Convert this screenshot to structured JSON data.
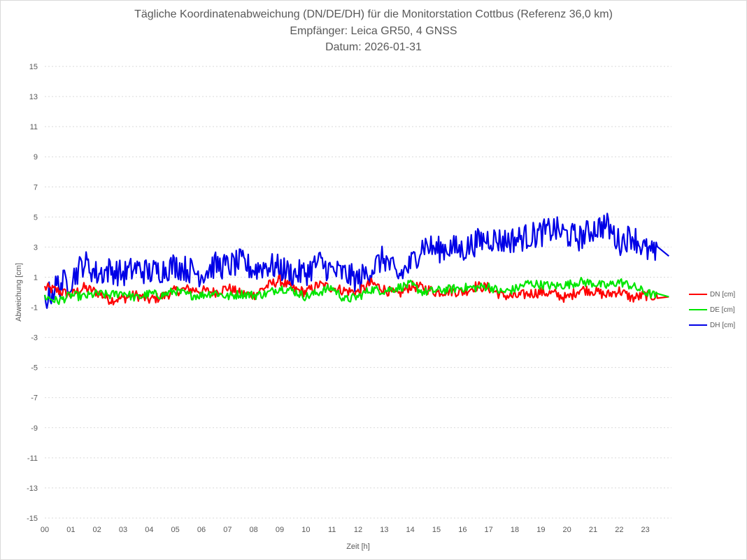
{
  "title": {
    "line1": "Tägliche Koordinatenabweichung (DN/DE/DH) für die Monitorstation Cottbus (Referenz 36,0 km)",
    "line2": "Empfänger: Leica GR50, 4 GNSS",
    "line3": "Datum: 2026-01-31"
  },
  "colors": {
    "DN": "#ff0000",
    "DE": "#00e600",
    "DH": "#0000e6",
    "grid": "#d9d9d9",
    "text": "#595959"
  },
  "chart_data": {
    "type": "line",
    "title": "Tägliche Koordinatenabweichung (DN/DE/DH) für die Monitorstation Cottbus (Referenz 36,0 km)",
    "xlabel": "Zeit [h]",
    "ylabel": "Abweichung [cm]",
    "x_range": [
      0,
      24
    ],
    "ylim": [
      -15,
      15
    ],
    "y_ticks": [
      "15",
      "13",
      "11",
      "9",
      "7",
      "5",
      "3",
      "1",
      "-1",
      "-3",
      "-5",
      "-7",
      "-9",
      "-11",
      "-13",
      "-15"
    ],
    "x_ticks": [
      "00",
      "01",
      "02",
      "03",
      "04",
      "05",
      "06",
      "07",
      "08",
      "09",
      "10",
      "11",
      "12",
      "13",
      "14",
      "15",
      "16",
      "17",
      "18",
      "19",
      "20",
      "21",
      "22",
      "23"
    ],
    "grid": "horizontal dotted",
    "legend_position": "right",
    "sample_interval_h": 0.5,
    "series": [
      {
        "name": "DN [cm]",
        "color": "#ff0000",
        "values": [
          0.3,
          0.1,
          -0.2,
          0.3,
          0.0,
          -0.5,
          -0.4,
          -0.2,
          -0.5,
          -0.3,
          0.1,
          0.2,
          0.1,
          0.0,
          0.3,
          -0.1,
          -0.2,
          0.4,
          0.8,
          0.2,
          0.0,
          0.5,
          0.3,
          0.1,
          0.0,
          0.6,
          0.2,
          -0.2,
          0.4,
          0.3,
          0.0,
          0.1,
          0.0,
          0.4,
          0.3,
          -0.2,
          -0.3,
          -0.1,
          0.0,
          -0.1,
          -0.4,
          0.2,
          0.1,
          -0.2,
          0.1,
          -0.4,
          -0.2,
          -0.3
        ]
      },
      {
        "name": "DE [cm]",
        "color": "#00e600",
        "values": [
          -0.3,
          -0.6,
          -0.2,
          -0.3,
          -0.1,
          -0.2,
          0.0,
          -0.4,
          -0.1,
          -0.2,
          0.1,
          -0.2,
          -0.2,
          0.0,
          -0.3,
          -0.1,
          -0.2,
          -0.1,
          0.3,
          0.1,
          -0.3,
          0.0,
          0.3,
          -0.5,
          -0.3,
          0.2,
          0.1,
          0.3,
          0.5,
          0.0,
          0.1,
          0.2,
          0.3,
          0.3,
          0.4,
          0.0,
          0.2,
          0.6,
          0.5,
          0.4,
          0.5,
          0.7,
          0.6,
          0.4,
          0.7,
          0.4,
          0.0,
          -0.3
        ]
      },
      {
        "name": "DH [cm]",
        "color": "#0000e6",
        "values": [
          -0.5,
          0.5,
          0.8,
          2.0,
          1.2,
          1.5,
          1.2,
          1.6,
          1.3,
          1.5,
          1.8,
          1.5,
          1.2,
          1.8,
          1.7,
          2.0,
          1.5,
          1.8,
          1.6,
          1.2,
          1.3,
          2.0,
          1.4,
          1.2,
          0.8,
          1.5,
          2.3,
          1.0,
          1.8,
          3.2,
          2.8,
          3.0,
          2.8,
          3.3,
          3.6,
          3.4,
          3.5,
          3.7,
          3.9,
          4.2,
          3.8,
          3.6,
          4.2,
          4.5,
          3.3,
          3.8,
          2.8,
          2.4
        ]
      }
    ]
  }
}
